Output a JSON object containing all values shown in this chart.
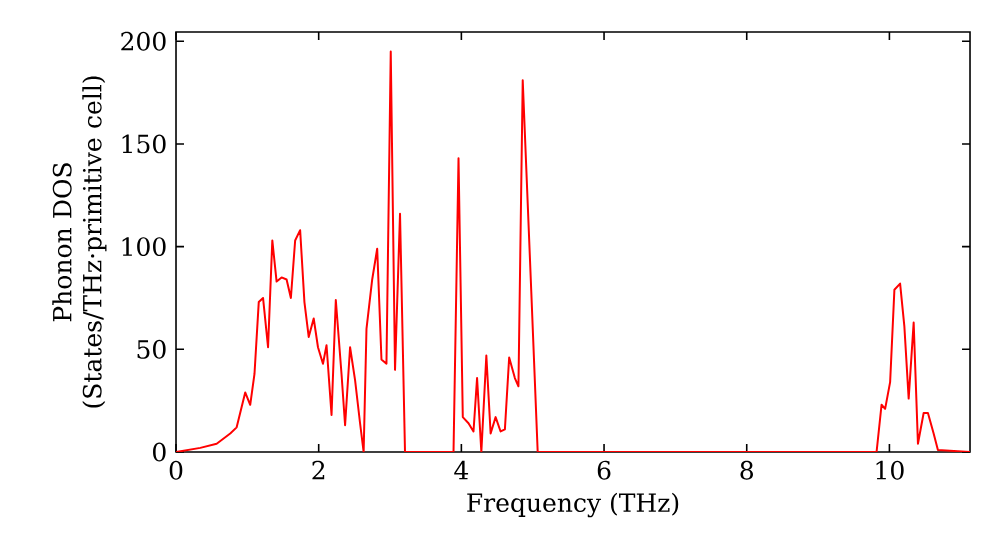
{
  "chart_data": {
    "type": "line",
    "xlabel": "Frequency (THz)",
    "ylabel": "Phonon DOS (States/THz·primitive cell)",
    "xlim": [
      0,
      11.13
    ],
    "ylim": [
      0,
      204.5
    ],
    "xticks": [
      0,
      2,
      4,
      6,
      8,
      10
    ],
    "yticks": [
      0,
      50,
      100,
      150,
      200
    ],
    "grid": false,
    "marker": "none",
    "line_style": "solid",
    "series": [
      {
        "color": "#ff0000",
        "x": [
          0,
          0.34,
          0.57,
          0.76,
          0.85,
          0.97,
          1.04,
          1.1,
          1.16,
          1.22,
          1.29,
          1.35,
          1.41,
          1.48,
          1.55,
          1.61,
          1.67,
          1.74,
          1.8,
          1.86,
          1.93,
          1.99,
          2.06,
          2.11,
          2.18,
          2.24,
          2.32,
          2.37,
          2.44,
          2.51,
          2.58,
          2.63,
          2.67,
          2.75,
          2.82,
          2.88,
          2.95,
          3.01,
          3.07,
          3.14,
          3.21,
          3.89,
          3.96,
          4.02,
          4.1,
          4.17,
          4.22,
          4.28,
          4.35,
          4.41,
          4.48,
          4.55,
          4.61,
          4.67,
          4.75,
          4.8,
          4.86,
          4.98,
          5.07,
          9.82,
          9.89,
          9.94,
          10.01,
          10.07,
          10.15,
          10.21,
          10.27,
          10.34,
          10.4,
          10.48,
          10.54,
          10.62,
          10.68,
          11.13
        ],
        "values": [
          0,
          2,
          4,
          9,
          12,
          29,
          23,
          38,
          73,
          75,
          51,
          103,
          83,
          85,
          84,
          75,
          103,
          108,
          73,
          56,
          65,
          51,
          43,
          52,
          18,
          74,
          38,
          13,
          51,
          35,
          14,
          0,
          60,
          84,
          99,
          45,
          43,
          195,
          40,
          116,
          0,
          0,
          143,
          17,
          14,
          10,
          36,
          0,
          47,
          9,
          17,
          10,
          11,
          46,
          36,
          32,
          181,
          78,
          0,
          0,
          23,
          21,
          34,
          79,
          82,
          61,
          26,
          63,
          4,
          19,
          19,
          9,
          1,
          0
        ]
      }
    ]
  }
}
